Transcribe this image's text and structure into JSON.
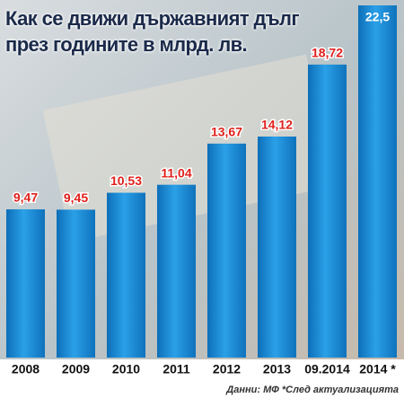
{
  "chart_data": {
    "type": "bar",
    "title": "Как се движи държавният дълг през годините в млрд. лв.",
    "source": "Данни: МФ *След актуализацията",
    "categories": [
      "2008",
      "2009",
      "2010",
      "2011",
      "2012",
      "2013",
      "09.2014",
      "2014 *"
    ],
    "values": [
      9.47,
      9.45,
      10.53,
      11.04,
      13.67,
      14.12,
      18.72,
      22.5
    ],
    "value_labels": [
      "9,47",
      "9,45",
      "10,53",
      "11,04",
      "13,67",
      "14,12",
      "18,72",
      "22,5"
    ],
    "color": "#1f8fd6"
  }
}
